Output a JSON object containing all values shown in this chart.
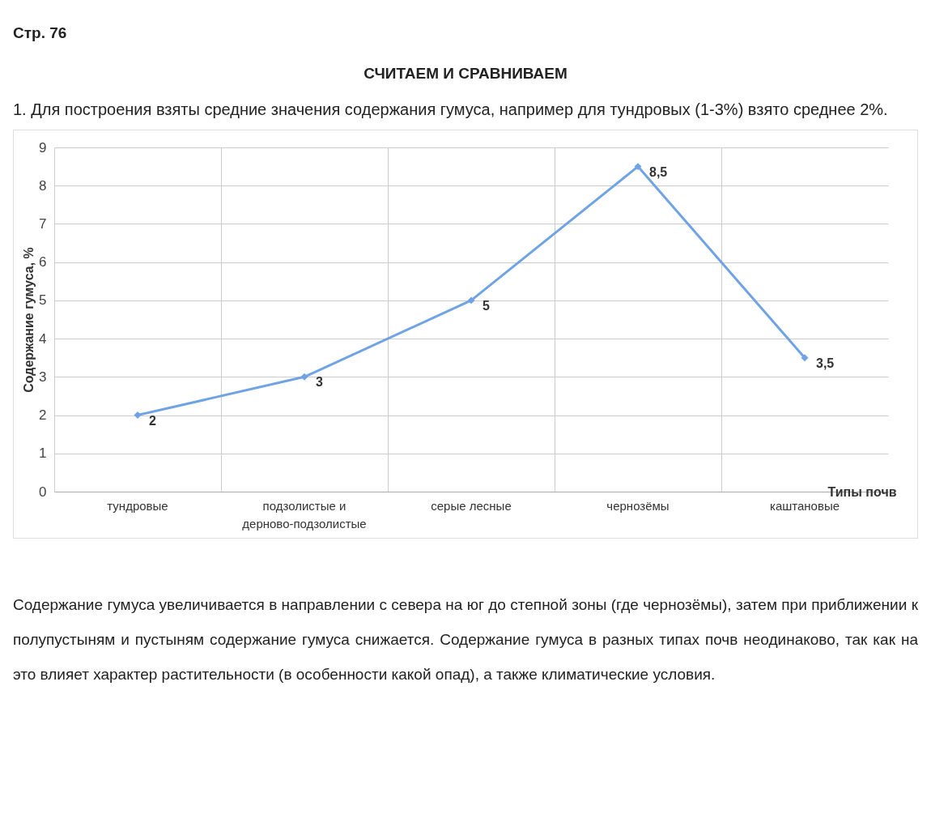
{
  "chart_data": {
    "type": "line",
    "title": "СЧИТАЕМ И СРАВНИВАЕМ",
    "subtitle": "1. Для построения взяты средние значения содержания гумуса, например для тундровых (1-3%) взято среднее 2%.",
    "annotations": [
      "Стр. 76",
      "Содержание гумуса увеличивается в направлении с севера на юг до степной зоны (где чернозёмы), затем при приближении к полупустыням и пустыням содержание гумуса снижается. Содержание гумуса в разных типах почв неодинаково, так как на это влияет характер растительности (в особенности какой опад), а также климатические условия."
    ],
    "xlabel": "Типы почв",
    "ylabel": "Содержание гумуса, %",
    "categories": [
      "тундровые",
      "подзолистые и\nдерново-подзолистые",
      "серые лесные",
      "чернозёмы",
      "каштановые"
    ],
    "series": [
      {
        "color": "#6fa3e6",
        "values": [
          2,
          3,
          5,
          8.5,
          3.5
        ],
        "value_labels": [
          "2",
          "3",
          "5",
          "8,5",
          "3,5"
        ]
      }
    ],
    "ylim": [
      0,
      9
    ],
    "yticks": [
      0,
      1,
      2,
      3,
      4,
      5,
      6,
      7,
      8,
      9
    ],
    "grid": true,
    "marker": "diamond"
  }
}
